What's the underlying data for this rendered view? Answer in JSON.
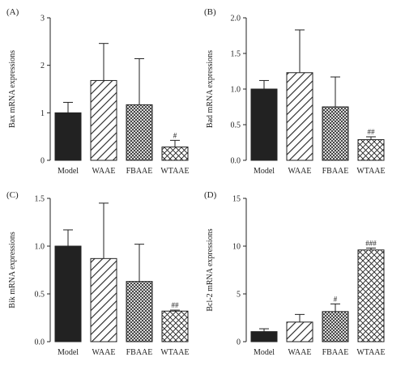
{
  "chart_data": [
    {
      "type": "bar",
      "panel_label": "(A)",
      "ylabel": "Bax mRNA expressions",
      "categories": [
        "Model",
        "WAAE",
        "FBAAE",
        "WTAAE"
      ],
      "values": [
        1.0,
        1.68,
        1.17,
        0.28
      ],
      "errors": [
        0.22,
        0.78,
        0.97,
        0.14
      ],
      "annotations": [
        "",
        "",
        "",
        "#"
      ],
      "ylim": [
        0,
        3
      ],
      "yticks": [
        0,
        1,
        2,
        3
      ],
      "ytick_labels": [
        "0",
        "1",
        "2",
        "3"
      ]
    },
    {
      "type": "bar",
      "panel_label": "(B)",
      "ylabel": "Bad mRNA expressions",
      "categories": [
        "Model",
        "WAAE",
        "FBAAE",
        "WTAAE"
      ],
      "values": [
        1.0,
        1.23,
        0.75,
        0.29
      ],
      "errors": [
        0.12,
        0.6,
        0.42,
        0.04
      ],
      "annotations": [
        "",
        "",
        "",
        "##"
      ],
      "ylim": [
        0,
        2.0
      ],
      "yticks": [
        0,
        0.5,
        1.0,
        1.5,
        2.0
      ],
      "ytick_labels": [
        "0.0",
        "0.5",
        "1.0",
        "1.5",
        "2.0"
      ]
    },
    {
      "type": "bar",
      "panel_label": "(C)",
      "ylabel": "Bik mRNA expressions",
      "categories": [
        "Model",
        "WAAE",
        "FBAAE",
        "WTAAE"
      ],
      "values": [
        1.0,
        0.87,
        0.63,
        0.32
      ],
      "errors": [
        0.17,
        0.58,
        0.39,
        0.01
      ],
      "annotations": [
        "",
        "",
        "",
        "##"
      ],
      "ylim": [
        0,
        1.5
      ],
      "yticks": [
        0,
        0.5,
        1.0,
        1.5
      ],
      "ytick_labels": [
        "0.0",
        "0.5",
        "1.0",
        "1.5"
      ]
    },
    {
      "type": "bar",
      "panel_label": "(D)",
      "ylabel": "Bcl-2 mRNA expressions",
      "categories": [
        "Model",
        "WAAE",
        "FBAAE",
        "WTAAE"
      ],
      "values": [
        1.05,
        2.05,
        3.15,
        9.6
      ],
      "errors": [
        0.3,
        0.8,
        0.8,
        0.2
      ],
      "annotations": [
        "",
        "",
        "#",
        "###"
      ],
      "ylim": [
        0,
        15
      ],
      "yticks": [
        0,
        5,
        10,
        15
      ],
      "ytick_labels": [
        "0",
        "5",
        "10",
        "15"
      ]
    }
  ],
  "bar_styles": [
    "solid",
    "diagonal-wide",
    "crosshatch-fine",
    "crosshatch-wide"
  ],
  "colors": {
    "ink": "#222222",
    "background": "#ffffff"
  }
}
